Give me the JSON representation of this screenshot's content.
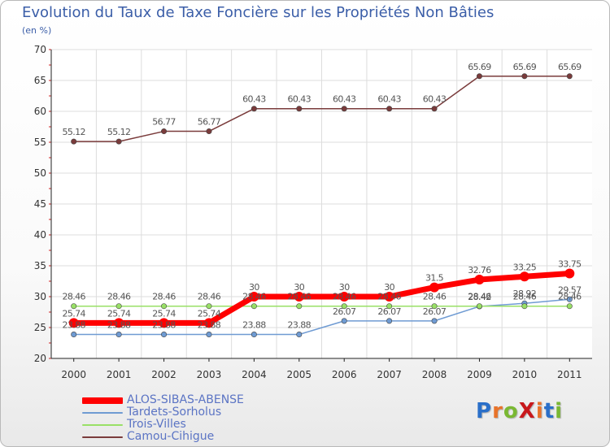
{
  "colors": {
    "title": "#3b5ea8",
    "axis_text": "#333333",
    "grid": "#dddddd",
    "axis": "#222222",
    "tick_marks": "#cc2222"
  },
  "chart_data": {
    "type": "line",
    "title": "Evolution du Taux de Taxe Foncière sur les Propriétés Non Bâties",
    "subtitle": "(en %)",
    "xlabel": "",
    "ylabel": "",
    "categories": [
      "2000",
      "2001",
      "2002",
      "2003",
      "2004",
      "2005",
      "2006",
      "2007",
      "2008",
      "2009",
      "2010",
      "2011"
    ],
    "ylim": [
      20,
      70
    ],
    "yticks": [
      20,
      25,
      30,
      35,
      40,
      45,
      50,
      55,
      60,
      65,
      70
    ],
    "grid": "horizontal",
    "legend_position": "bottom-left",
    "series": [
      {
        "name": "ALOS-SIBAS-ABENSE",
        "color": "#ff0000",
        "values": [
          25.74,
          25.74,
          25.74,
          25.74,
          30,
          30,
          30,
          30,
          31.5,
          32.76,
          33.25,
          33.75
        ],
        "labels": [
          "25.74",
          "25.74",
          "25.74",
          "25.74",
          "30",
          "30",
          "30",
          "30",
          "31.5",
          "32.76",
          "33.25",
          "33.75"
        ],
        "emphasis": true
      },
      {
        "name": "Tardets-Sorholus",
        "color": "#6f9bd3",
        "values": [
          23.88,
          23.88,
          23.88,
          23.88,
          23.88,
          23.88,
          26.07,
          26.07,
          26.07,
          28.42,
          28.92,
          29.57
        ],
        "labels": [
          "23.88",
          "23.88",
          "23.88",
          "23.88",
          "23.88",
          "23.88",
          "26.07",
          "26.07",
          "26.07",
          "28.42",
          "28.92",
          "29.57"
        ]
      },
      {
        "name": "Trois-Villes",
        "color": "#99e066",
        "values": [
          28.46,
          28.46,
          28.46,
          28.46,
          28.46,
          28.46,
          28.46,
          28.46,
          28.46,
          28.46,
          28.46,
          28.46
        ],
        "labels": [
          "28.46",
          "28.46",
          "28.46",
          "28.46",
          "28.46",
          "28.46",
          "28.46",
          "28.46",
          "28.46",
          "28.46",
          "28.46",
          "28.46"
        ]
      },
      {
        "name": "Camou-Cihigue",
        "color": "#7a3b3b",
        "values": [
          55.12,
          55.12,
          56.77,
          56.77,
          60.43,
          60.43,
          60.43,
          60.43,
          60.43,
          65.69,
          65.69,
          65.69
        ],
        "labels": [
          "55.12",
          "55.12",
          "56.77",
          "56.77",
          "60.43",
          "60.43",
          "60.43",
          "60.43",
          "60.43",
          "65.69",
          "65.69",
          "65.69"
        ]
      }
    ]
  },
  "logo": {
    "text": "ProXiti",
    "letter_colors": [
      "#2a6fc9",
      "#e8732a",
      "#7ab833",
      "#c8181c",
      "#e8732a",
      "#2a6fc9",
      "#7ab833"
    ]
  }
}
